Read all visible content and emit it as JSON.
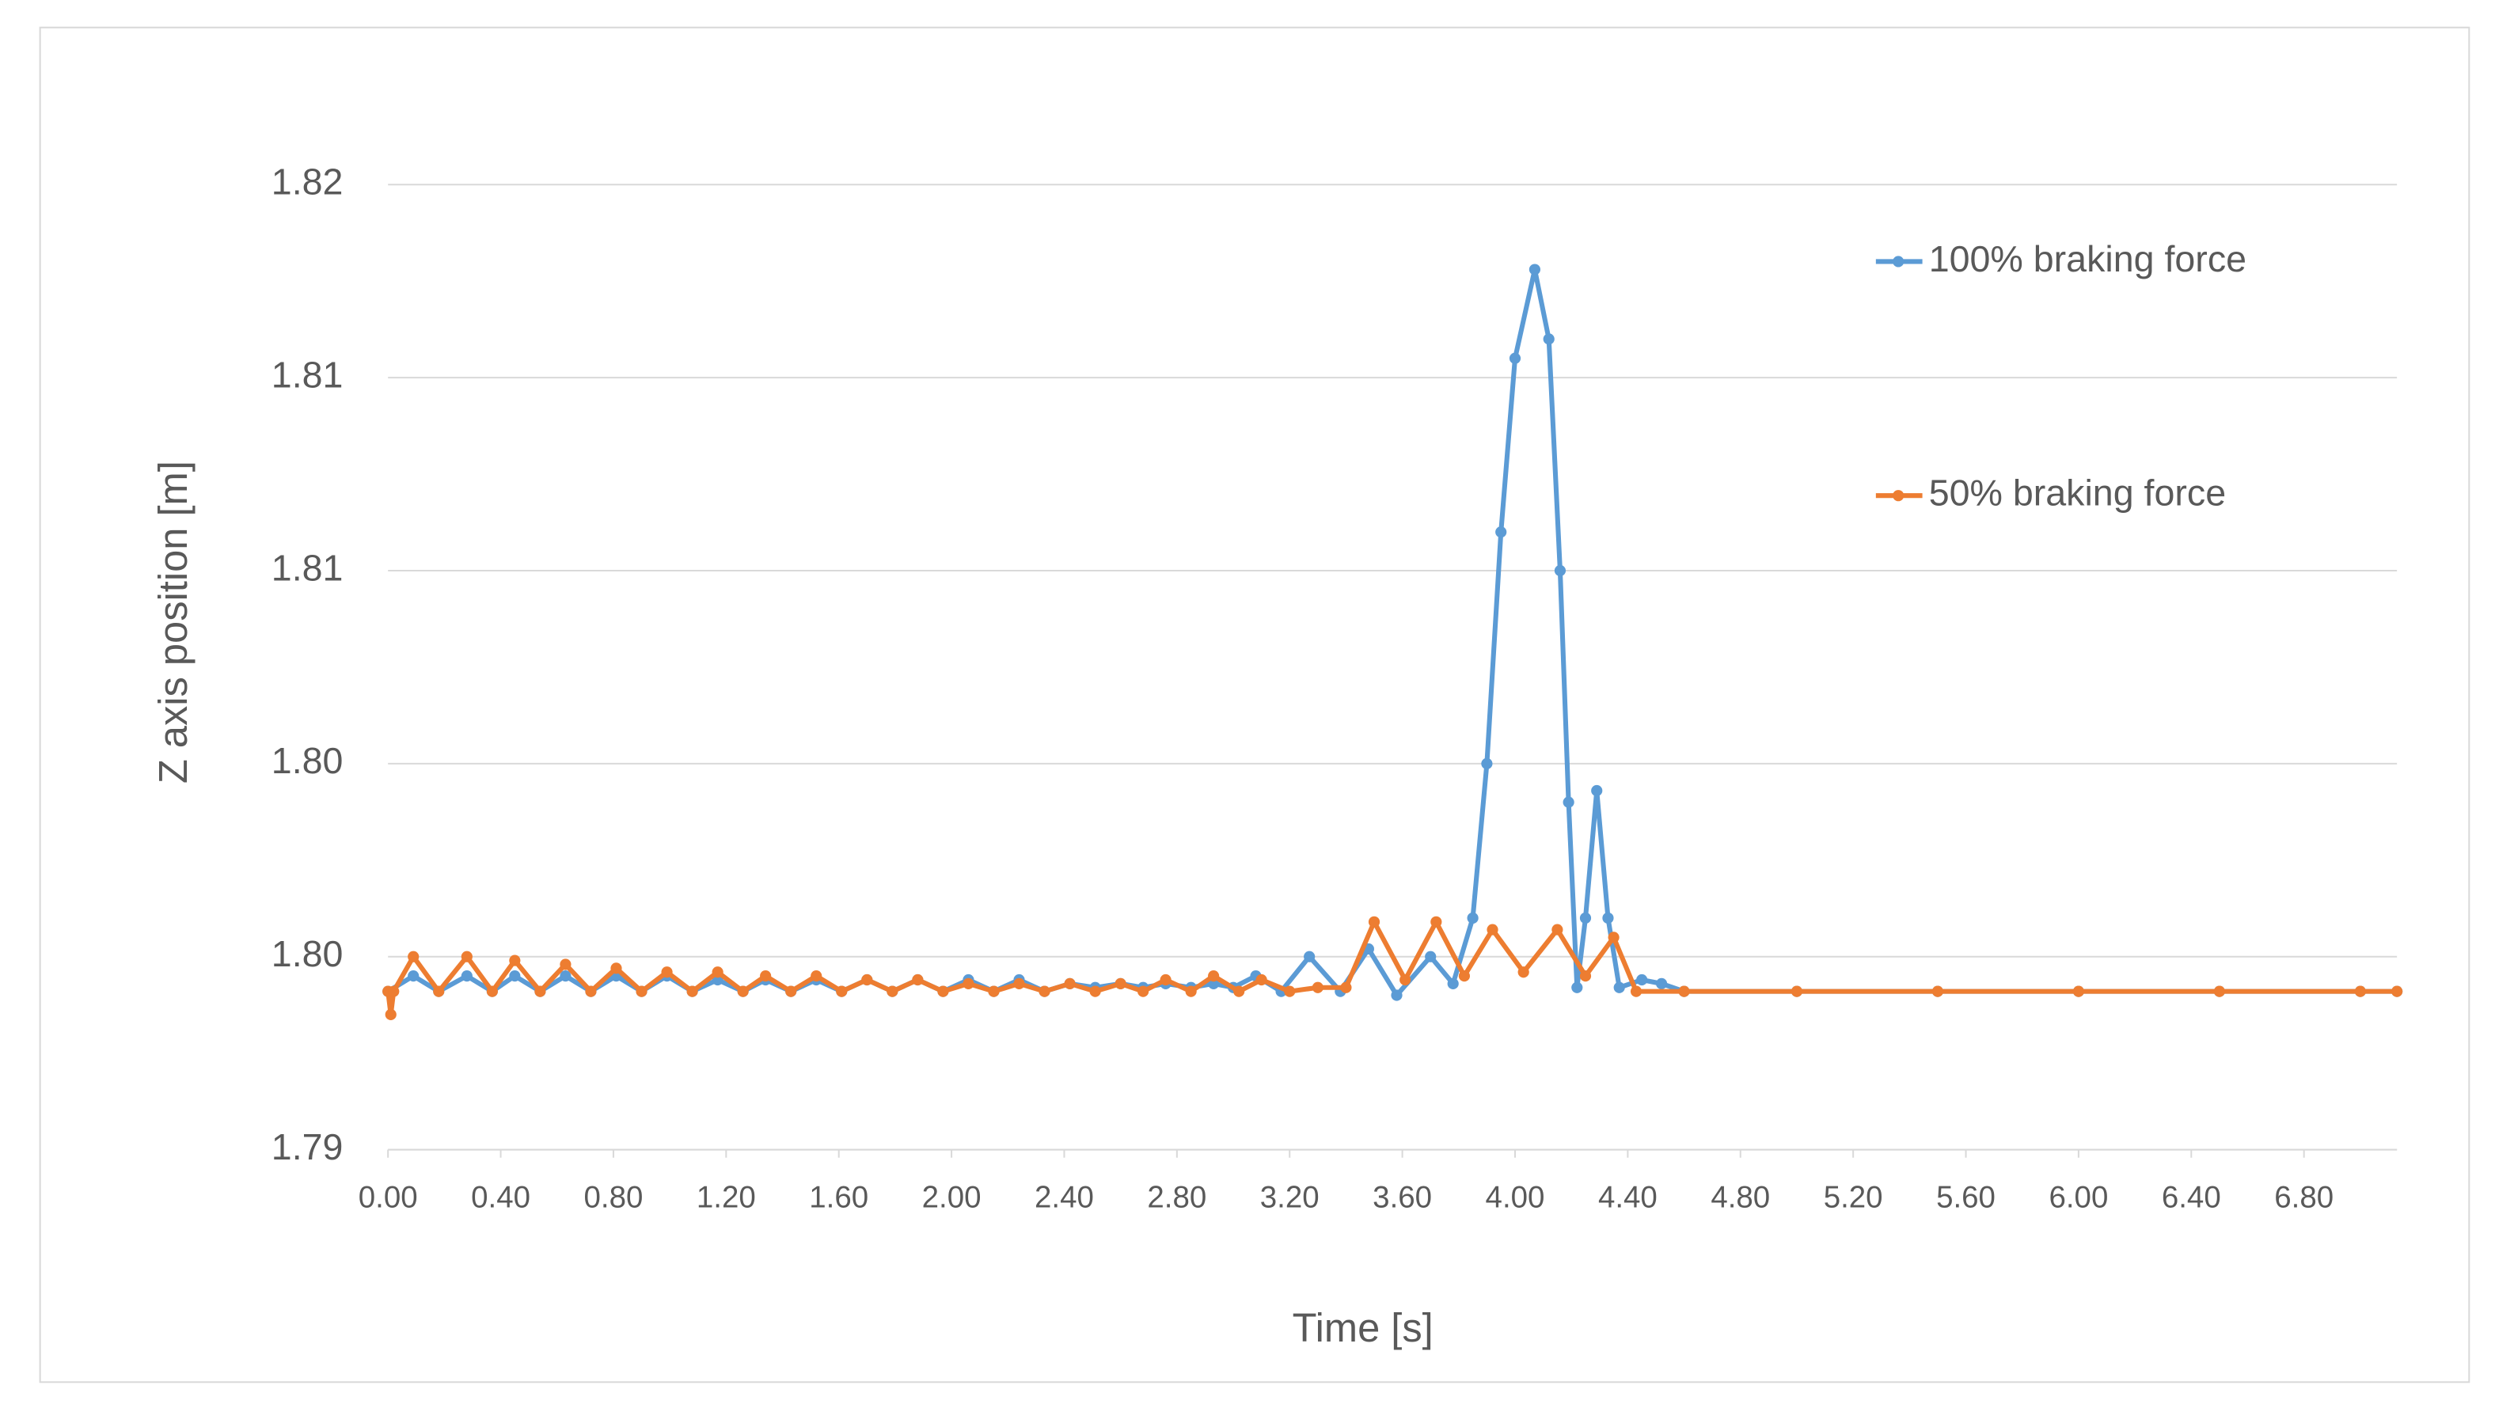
{
  "chart_data": {
    "type": "line",
    "x_label": "Time [s]",
    "y_label": "Z axis position [m]",
    "xlim": [
      0,
      7.13
    ],
    "ylim": [
      1.795,
      1.82
    ],
    "xticks": [
      {
        "value": 0,
        "label": "0.00"
      },
      {
        "value": 0.4,
        "label": "0.40"
      },
      {
        "value": 0.8,
        "label": "0.80"
      },
      {
        "value": 1.2,
        "label": "1.20"
      },
      {
        "value": 1.6,
        "label": "1.60"
      },
      {
        "value": 2.0,
        "label": "2.00"
      },
      {
        "value": 2.4,
        "label": "2.40"
      },
      {
        "value": 2.8,
        "label": "2.80"
      },
      {
        "value": 3.2,
        "label": "3.20"
      },
      {
        "value": 3.6,
        "label": "3.60"
      },
      {
        "value": 4.0,
        "label": "4.00"
      },
      {
        "value": 4.4,
        "label": "4.40"
      },
      {
        "value": 4.8,
        "label": "4.80"
      },
      {
        "value": 5.2,
        "label": "5.20"
      },
      {
        "value": 5.6,
        "label": "5.60"
      },
      {
        "value": 6.0,
        "label": "6.00"
      },
      {
        "value": 6.4,
        "label": "6.40"
      },
      {
        "value": 6.8,
        "label": "6.80"
      }
    ],
    "yticks": [
      {
        "value": 1.795,
        "label": "1.79"
      },
      {
        "value": 1.8,
        "label": "1.80"
      },
      {
        "value": 1.805,
        "label": "1.80"
      },
      {
        "value": 1.81,
        "label": "1.81"
      },
      {
        "value": 1.815,
        "label": "1.81"
      },
      {
        "value": 1.82,
        "label": "1.82"
      }
    ],
    "grid": true,
    "legend": "right",
    "series": [
      {
        "name": "100% braking force",
        "color": "#5b9bd5",
        "x": [
          0,
          0.09,
          0.18,
          0.28,
          0.37,
          0.45,
          0.54,
          0.63,
          0.72,
          0.81,
          0.9,
          0.99,
          1.08,
          1.17,
          1.26,
          1.34,
          1.43,
          1.52,
          1.61,
          1.7,
          1.79,
          1.88,
          1.97,
          2.06,
          2.15,
          2.24,
          2.33,
          2.42,
          2.51,
          2.6,
          2.68,
          2.76,
          2.85,
          2.93,
          3.0,
          3.08,
          3.17,
          3.27,
          3.38,
          3.48,
          3.58,
          3.7,
          3.78,
          3.85,
          3.9,
          3.95,
          4.0,
          4.07,
          4.12,
          4.16,
          4.19,
          4.22,
          4.25,
          4.29,
          4.33,
          4.37,
          4.45,
          4.52,
          4.6,
          5.0,
          5.5,
          6.0,
          6.5,
          7.0,
          7.13
        ],
        "values": [
          1.7991,
          1.7995,
          1.7991,
          1.7995,
          1.7991,
          1.7995,
          1.7991,
          1.7995,
          1.7991,
          1.7995,
          1.7991,
          1.7995,
          1.7991,
          1.7994,
          1.7991,
          1.7994,
          1.7991,
          1.7994,
          1.7991,
          1.7994,
          1.7991,
          1.7994,
          1.7991,
          1.7994,
          1.7991,
          1.7994,
          1.7991,
          1.7993,
          1.7992,
          1.7993,
          1.7992,
          1.7993,
          1.7992,
          1.7993,
          1.7992,
          1.7995,
          1.7991,
          1.8,
          1.7991,
          1.8002,
          1.799,
          1.8,
          1.7993,
          1.801,
          1.805,
          1.811,
          1.8155,
          1.8178,
          1.816,
          1.81,
          1.804,
          1.7992,
          1.801,
          1.8043,
          1.801,
          1.7992,
          1.7994,
          1.7993,
          1.7991,
          1.7991,
          1.7991,
          1.7991,
          1.7991,
          1.7991,
          1.7991
        ]
      },
      {
        "name": "50% braking force",
        "color": "#ed7d31",
        "x": [
          0,
          0.01,
          0.02,
          0.09,
          0.18,
          0.28,
          0.37,
          0.45,
          0.54,
          0.63,
          0.72,
          0.81,
          0.9,
          0.99,
          1.08,
          1.17,
          1.26,
          1.34,
          1.43,
          1.52,
          1.61,
          1.7,
          1.79,
          1.88,
          1.97,
          2.06,
          2.15,
          2.24,
          2.33,
          2.42,
          2.51,
          2.6,
          2.68,
          2.76,
          2.85,
          2.93,
          3.02,
          3.1,
          3.2,
          3.3,
          3.4,
          3.5,
          3.61,
          3.72,
          3.82,
          3.92,
          4.03,
          4.15,
          4.25,
          4.35,
          4.43,
          4.6,
          5.0,
          5.5,
          6.0,
          6.5,
          7.0,
          7.13
        ],
        "values": [
          1.7991,
          1.7985,
          1.7991,
          1.8,
          1.7991,
          1.8,
          1.7991,
          1.7999,
          1.7991,
          1.7998,
          1.7991,
          1.7997,
          1.7991,
          1.7996,
          1.7991,
          1.7996,
          1.7991,
          1.7995,
          1.7991,
          1.7995,
          1.7991,
          1.7994,
          1.7991,
          1.7994,
          1.7991,
          1.7993,
          1.7991,
          1.7993,
          1.7991,
          1.7993,
          1.7991,
          1.7993,
          1.7991,
          1.7994,
          1.7991,
          1.7995,
          1.7991,
          1.7994,
          1.7991,
          1.7992,
          1.7992,
          1.8009,
          1.7994,
          1.8009,
          1.7995,
          1.8007,
          1.7996,
          1.8007,
          1.7995,
          1.8005,
          1.7991,
          1.7991,
          1.7991,
          1.7991,
          1.7991,
          1.7991,
          1.7991,
          1.7991
        ]
      }
    ]
  }
}
